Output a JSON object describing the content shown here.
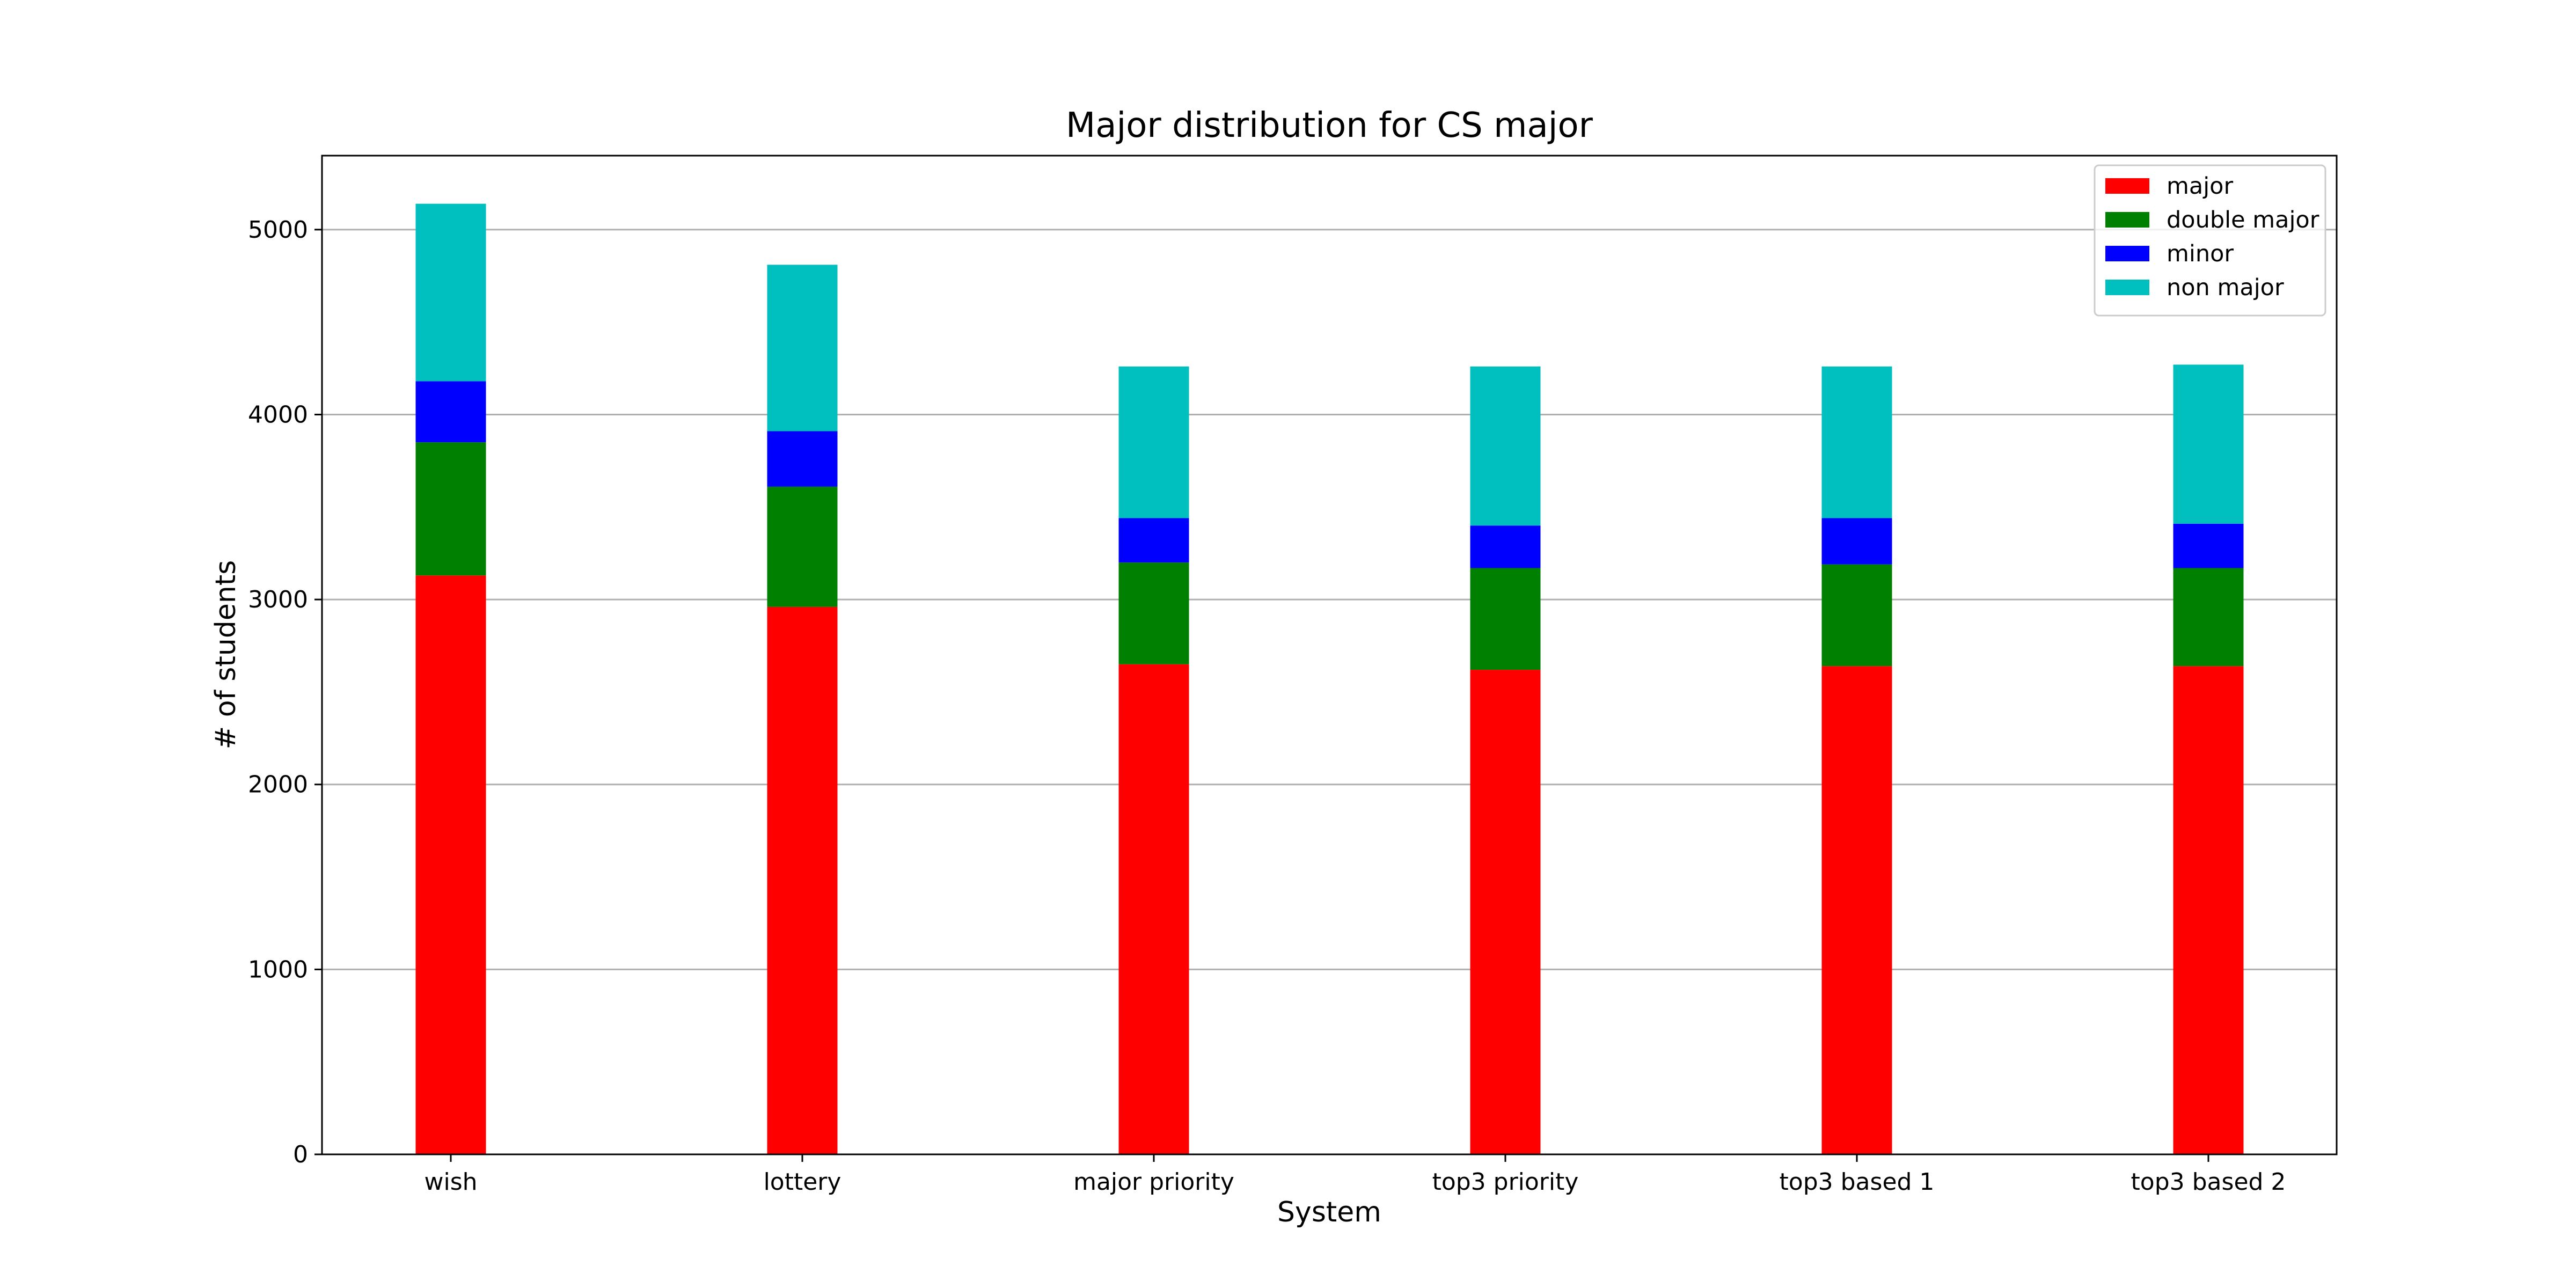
{
  "chart_data": {
    "type": "bar",
    "stacked": true,
    "title": "Major distribution for CS major",
    "xlabel": "System",
    "ylabel": "# of students",
    "ylim": [
      0,
      5400
    ],
    "yticks": [
      0,
      1000,
      2000,
      3000,
      4000,
      5000
    ],
    "grid": "y",
    "legend_position": "top-right",
    "categories": [
      "wish",
      "lottery",
      "major priority",
      "top3 priority",
      "top3 based 1",
      "top3 based 2"
    ],
    "series": [
      {
        "name": "major",
        "color": "#ff0000",
        "values": [
          3130,
          2960,
          2650,
          2620,
          2640,
          2640
        ]
      },
      {
        "name": "double major",
        "color": "#008000",
        "values": [
          720,
          650,
          550,
          550,
          550,
          530
        ]
      },
      {
        "name": "minor",
        "color": "#0000ff",
        "values": [
          330,
          300,
          240,
          230,
          250,
          240
        ]
      },
      {
        "name": "non major",
        "color": "#00bfbf",
        "values": [
          960,
          900,
          820,
          860,
          820,
          860
        ]
      }
    ]
  }
}
